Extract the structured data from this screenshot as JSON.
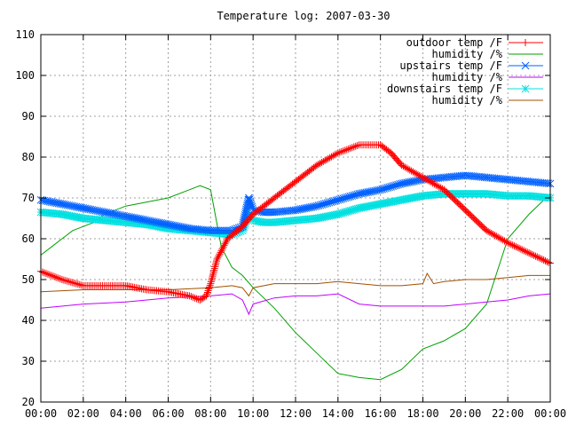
{
  "chart_data": {
    "type": "line",
    "title": "Temperature log: 2007-03-30",
    "xlabel": "",
    "ylabel": "",
    "xlim": [
      0,
      24
    ],
    "ylim": [
      20,
      110
    ],
    "grid": true,
    "legend_position": "top-right",
    "x_ticks": [
      {
        "value": 0,
        "label": "00:00"
      },
      {
        "value": 2,
        "label": "02:00"
      },
      {
        "value": 4,
        "label": "04:00"
      },
      {
        "value": 6,
        "label": "06:00"
      },
      {
        "value": 8,
        "label": "08:00"
      },
      {
        "value": 10,
        "label": "10:00"
      },
      {
        "value": 12,
        "label": "12:00"
      },
      {
        "value": 14,
        "label": "14:00"
      },
      {
        "value": 16,
        "label": "16:00"
      },
      {
        "value": 18,
        "label": "18:00"
      },
      {
        "value": 20,
        "label": "20:00"
      },
      {
        "value": 22,
        "label": "22:00"
      },
      {
        "value": 24,
        "label": "00:00"
      }
    ],
    "y_ticks": [
      20,
      30,
      40,
      50,
      60,
      70,
      80,
      90,
      100,
      110
    ],
    "series": [
      {
        "name": "outdoor temp /F",
        "color": "#ff0000",
        "marker": "plus",
        "x": [
          0,
          1,
          2,
          3,
          4,
          5,
          6,
          7,
          7.5,
          7.8,
          8.0,
          8.3,
          8.8,
          9.5,
          10,
          11,
          12,
          13,
          14,
          15,
          16,
          16.5,
          17,
          18,
          19,
          20,
          21,
          22,
          23,
          24
        ],
        "y": [
          52,
          50,
          48.5,
          48.5,
          48.5,
          47.5,
          47,
          46,
          45,
          46,
          49,
          55,
          60,
          63,
          66,
          70,
          74,
          78,
          81,
          83,
          83,
          81,
          78,
          75,
          72,
          67,
          62,
          59,
          56.5,
          54
        ]
      },
      {
        "name": "humidity /%",
        "color": "#00a000",
        "marker": "none",
        "x": [
          0,
          0.5,
          1,
          1.5,
          2,
          2.5,
          3,
          4,
          5,
          6,
          7,
          7.5,
          8,
          8.5,
          9,
          9.5,
          10,
          11,
          12,
          13,
          14,
          15,
          16,
          17,
          18,
          19,
          20,
          21,
          22,
          23,
          24
        ],
        "y": [
          56,
          58,
          60,
          62,
          63,
          64,
          66,
          68,
          69,
          70,
          72,
          73,
          72,
          58,
          53,
          51,
          48,
          43,
          37,
          32,
          27,
          26,
          25.5,
          28,
          33,
          35,
          38,
          44,
          60,
          66,
          71
        ]
      },
      {
        "name": "upstairs temp /F",
        "color": "#0060ff",
        "marker": "cross",
        "x": [
          0,
          1,
          2,
          3,
          4,
          5,
          6,
          7,
          8,
          9,
          9.5,
          9.8,
          10,
          10.5,
          11,
          12,
          13,
          14,
          15,
          16,
          17,
          18,
          19,
          20,
          21,
          22,
          23,
          24
        ],
        "y": [
          69.5,
          68.5,
          67.5,
          66.5,
          65.5,
          64.5,
          63.5,
          62.5,
          62,
          62,
          63,
          70,
          67,
          66.5,
          66.5,
          67,
          68,
          69.5,
          71,
          72,
          73.5,
          74.5,
          75,
          75.5,
          75,
          74.5,
          74,
          73.5
        ]
      },
      {
        "name": "humidity /%",
        "color": "#c000ff",
        "marker": "none",
        "x": [
          0,
          2,
          4,
          6,
          8,
          9,
          9.5,
          9.8,
          10,
          11,
          12,
          13,
          14,
          15,
          16,
          17,
          18,
          19,
          20,
          21,
          22,
          23,
          24
        ],
        "y": [
          43,
          44,
          44.5,
          45.5,
          46,
          46.5,
          45,
          41.5,
          44,
          45.5,
          46,
          46,
          46.5,
          44,
          43.5,
          43.5,
          43.5,
          43.5,
          44,
          44.5,
          45,
          46,
          46.5
        ]
      },
      {
        "name": "downstairs temp /F",
        "color": "#00e0e0",
        "marker": "star",
        "x": [
          0,
          1,
          2,
          3,
          4,
          5,
          6,
          7,
          8,
          9,
          9.5,
          9.8,
          10,
          10.5,
          11,
          12,
          13,
          14,
          15,
          16,
          17,
          18,
          19,
          20,
          21,
          22,
          23,
          24
        ],
        "y": [
          66.5,
          66,
          65,
          64.5,
          64,
          63.5,
          62.5,
          62,
          61.5,
          61,
          62,
          66,
          64.5,
          64,
          64,
          64.5,
          65,
          66,
          67.5,
          68.5,
          69.5,
          70.5,
          71,
          71,
          71,
          70.5,
          70.5,
          70
        ]
      },
      {
        "name": "humidity /%",
        "color": "#a05000",
        "marker": "none",
        "x": [
          0,
          2,
          4,
          6,
          8,
          9,
          9.5,
          9.8,
          10,
          11,
          12,
          13,
          14,
          15,
          16,
          17,
          18,
          18.2,
          18.5,
          19,
          20,
          21,
          22,
          23,
          24
        ],
        "y": [
          47,
          47.5,
          47.5,
          47.5,
          48,
          48.5,
          48,
          46,
          48,
          49,
          49,
          49,
          49.5,
          49,
          48.5,
          48.5,
          49,
          51.5,
          49,
          49.5,
          50,
          50,
          50.5,
          51,
          51
        ]
      }
    ]
  }
}
